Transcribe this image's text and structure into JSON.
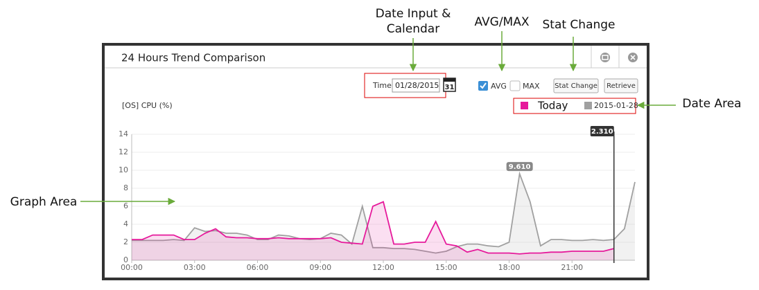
{
  "callouts": {
    "date_input": [
      "Date Input &",
      "Calendar"
    ],
    "avg_max": "AVG/MAX",
    "stat_change": "Stat Change",
    "date_area": "Date Area",
    "graph_area": "Graph Area"
  },
  "window": {
    "title": "24 Hours Trend Comparison",
    "time_label": "Time",
    "date_value": "01/28/2015",
    "calendar_icon": "31",
    "avg": "AVG",
    "max": "MAX",
    "stat_change_button": "Stat Change",
    "retrieve_button": "Retrieve"
  },
  "chart_data": {
    "type": "line",
    "y_label": "[OS] CPU (%)",
    "x": [
      0,
      0.5,
      1,
      1.5,
      2,
      2.5,
      3,
      3.5,
      4,
      4.5,
      5,
      5.5,
      6,
      6.5,
      7,
      7.5,
      8,
      8.5,
      9,
      9.5,
      10,
      10.5,
      11,
      11.5,
      12,
      12.5,
      13,
      13.5,
      14,
      14.5,
      15,
      15.5,
      16,
      16.5,
      17,
      17.5,
      18,
      18.5,
      19,
      19.5,
      20,
      20.5,
      21,
      21.5,
      22,
      22.5,
      23,
      23.5,
      24
    ],
    "series": [
      {
        "name": "Today",
        "color": "#e6199b",
        "values": [
          2.3,
          2.3,
          2.8,
          2.8,
          2.8,
          2.3,
          2.3,
          3.0,
          3.5,
          2.6,
          2.5,
          2.5,
          2.4,
          2.4,
          2.5,
          2.4,
          2.4,
          2.4,
          2.4,
          2.5,
          2.0,
          1.9,
          1.8,
          6.0,
          6.5,
          1.8,
          1.8,
          2.0,
          2.0,
          4.3,
          1.8,
          1.6,
          0.9,
          1.2,
          0.8,
          0.8,
          0.8,
          0.7,
          0.8,
          0.8,
          0.9,
          0.9,
          1.0,
          1.0,
          1.0,
          1.0,
          1.3,
          null,
          null
        ]
      },
      {
        "name": "2015-01-28",
        "color": "#a0a0a0",
        "values": [
          2.2,
          2.2,
          2.2,
          2.2,
          2.3,
          2.2,
          3.6,
          3.2,
          3.3,
          3.0,
          3.0,
          2.8,
          2.3,
          2.3,
          2.8,
          2.7,
          2.4,
          2.3,
          2.4,
          3.0,
          2.8,
          1.8,
          6.0,
          1.4,
          1.4,
          1.3,
          1.3,
          1.2,
          1.0,
          0.8,
          1.0,
          1.5,
          1.8,
          1.8,
          1.6,
          1.5,
          2.0,
          9.61,
          6.5,
          1.6,
          2.3,
          2.3,
          2.2,
          2.2,
          2.3,
          2.2,
          2.31,
          3.5,
          8.7
        ]
      }
    ],
    "xlim": [
      0,
      24
    ],
    "xticks": [
      {
        "value": 0,
        "label": "00:00"
      },
      {
        "value": 3,
        "label": "03:00"
      },
      {
        "value": 6,
        "label": "06:00"
      },
      {
        "value": 9,
        "label": "09:00"
      },
      {
        "value": 12,
        "label": "12:00"
      },
      {
        "value": 15,
        "label": "15:00"
      },
      {
        "value": 18,
        "label": "18:00"
      },
      {
        "value": 21,
        "label": "21:00"
      }
    ],
    "ylim": [
      0,
      14
    ],
    "yticks": [
      0,
      2,
      4,
      6,
      8,
      10,
      12,
      14
    ],
    "grid": true,
    "annotations": [
      {
        "x": 18.5,
        "value": 9.61,
        "label": "9.610"
      }
    ],
    "cursor": {
      "x": 23,
      "value": 2.31,
      "label": "2.310"
    }
  }
}
